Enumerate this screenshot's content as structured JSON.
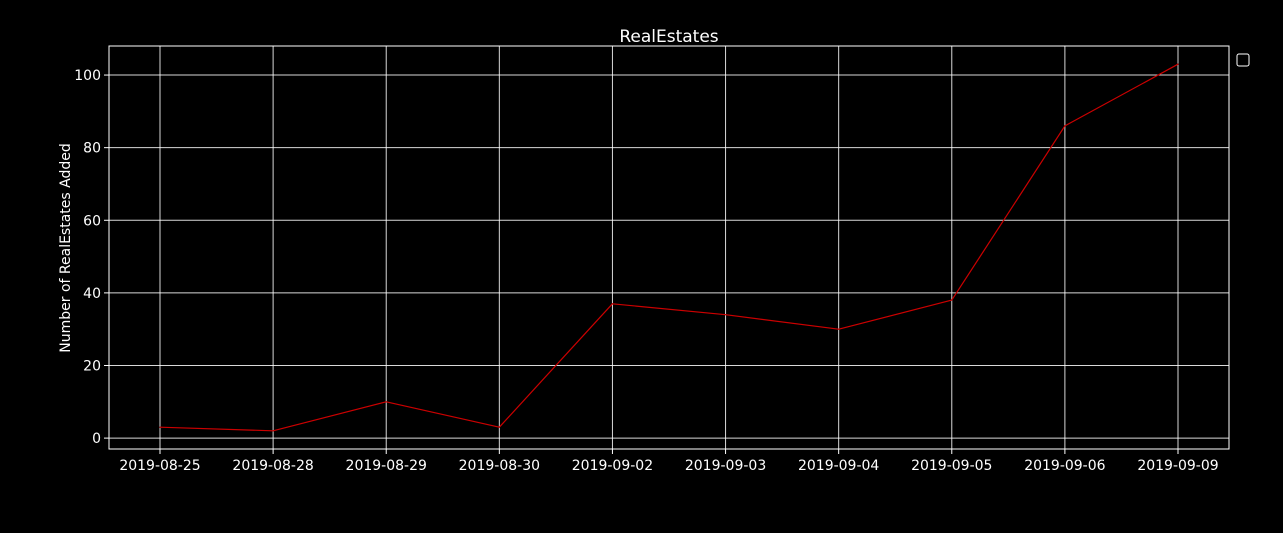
{
  "chart_data": {
    "type": "line",
    "title": "RealEstates",
    "xlabel": "",
    "ylabel": "Number of RealEstates Added",
    "categories": [
      "2019-08-25",
      "2019-08-28",
      "2019-08-29",
      "2019-08-30",
      "2019-09-02",
      "2019-09-03",
      "2019-09-04",
      "2019-09-05",
      "2019-09-06",
      "2019-09-09"
    ],
    "series": [
      {
        "values": [
          3,
          2,
          10,
          3,
          37,
          34,
          30,
          38,
          86,
          103
        ],
        "color": "#cc0000"
      }
    ],
    "ylim": [
      -3,
      108
    ],
    "yticks": [
      0,
      20,
      40,
      60,
      80,
      100
    ],
    "grid": true,
    "legend": "top-right, outside, empty",
    "background": "#000000",
    "foreground": "#ffffff"
  }
}
